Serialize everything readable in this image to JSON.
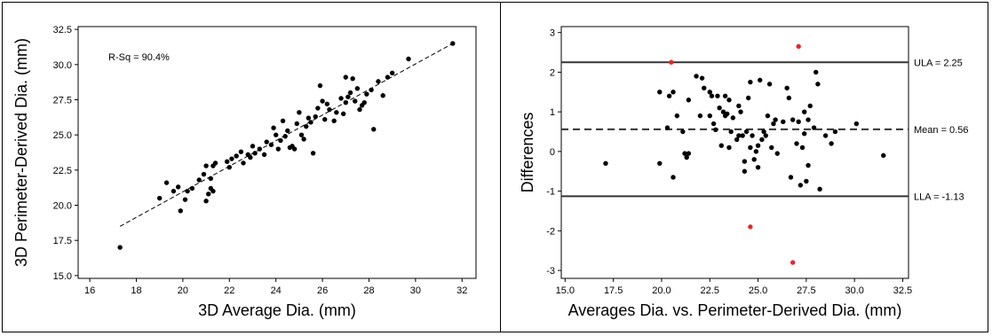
{
  "chart_data": [
    {
      "type": "scatter",
      "xlabel": "3D Average Dia. (mm)",
      "ylabel": "3D Perimeter-Derived Dia. (mm)",
      "xlim": [
        15.5,
        32.6
      ],
      "ylim": [
        14.8,
        32.7
      ],
      "xticks": [
        "16",
        "18",
        "20",
        "22",
        "24",
        "26",
        "28",
        "30",
        "32"
      ],
      "yticks": [
        "15.0",
        "17.5",
        "20.0",
        "22.5",
        "25.0",
        "27.5",
        "30.0",
        "32.5"
      ],
      "annotation": "R-Sq = 90.4%",
      "fit_line": {
        "x": [
          17.3,
          31.6
        ],
        "y": [
          18.5,
          31.5
        ],
        "style": "dashed"
      },
      "points": [
        [
          17.3,
          17.0
        ],
        [
          19.0,
          20.5
        ],
        [
          19.3,
          21.6
        ],
        [
          19.6,
          21.0
        ],
        [
          19.8,
          21.3
        ],
        [
          19.9,
          19.6
        ],
        [
          20.1,
          20.4
        ],
        [
          20.2,
          21.0
        ],
        [
          20.4,
          21.2
        ],
        [
          20.7,
          21.8
        ],
        [
          20.9,
          22.2
        ],
        [
          21.0,
          22.8
        ],
        [
          21.0,
          20.3
        ],
        [
          21.1,
          20.8
        ],
        [
          21.2,
          21.2
        ],
        [
          21.3,
          21.0
        ],
        [
          21.2,
          21.9
        ],
        [
          21.3,
          22.8
        ],
        [
          21.4,
          23.0
        ],
        [
          21.9,
          23.1
        ],
        [
          22.0,
          22.7
        ],
        [
          22.1,
          23.3
        ],
        [
          22.3,
          23.5
        ],
        [
          22.5,
          23.8
        ],
        [
          22.6,
          23.0
        ],
        [
          22.8,
          23.6
        ],
        [
          22.9,
          23.4
        ],
        [
          23.0,
          24.2
        ],
        [
          23.1,
          23.7
        ],
        [
          23.3,
          24.0
        ],
        [
          23.5,
          23.6
        ],
        [
          23.6,
          24.5
        ],
        [
          23.8,
          24.3
        ],
        [
          23.9,
          25.5
        ],
        [
          24.0,
          25.0
        ],
        [
          24.1,
          24.0
        ],
        [
          24.2,
          24.6
        ],
        [
          24.3,
          26.0
        ],
        [
          24.4,
          24.9
        ],
        [
          24.5,
          25.3
        ],
        [
          24.6,
          24.1
        ],
        [
          24.7,
          24.2
        ],
        [
          24.8,
          24.0
        ],
        [
          24.9,
          25.8
        ],
        [
          25.0,
          26.6
        ],
        [
          25.1,
          25.0
        ],
        [
          25.2,
          24.7
        ],
        [
          25.3,
          25.6
        ],
        [
          25.4,
          26.2
        ],
        [
          25.5,
          25.9
        ],
        [
          25.6,
          23.7
        ],
        [
          25.7,
          26.3
        ],
        [
          25.8,
          26.9
        ],
        [
          25.9,
          28.5
        ],
        [
          26.0,
          27.4
        ],
        [
          26.1,
          26.1
        ],
        [
          26.2,
          27.2
        ],
        [
          26.3,
          26.8
        ],
        [
          26.5,
          26.0
        ],
        [
          26.6,
          26.6
        ],
        [
          26.8,
          27.6
        ],
        [
          26.9,
          26.5
        ],
        [
          27.0,
          27.3
        ],
        [
          27.0,
          29.1
        ],
        [
          27.1,
          27.7
        ],
        [
          27.2,
          28.0
        ],
        [
          27.3,
          29.0
        ],
        [
          27.4,
          27.4
        ],
        [
          27.5,
          28.3
        ],
        [
          27.6,
          26.8
        ],
        [
          27.7,
          27.1
        ],
        [
          27.8,
          27.3
        ],
        [
          27.9,
          27.9
        ],
        [
          28.1,
          28.2
        ],
        [
          28.2,
          25.4
        ],
        [
          28.4,
          28.8
        ],
        [
          28.6,
          27.8
        ],
        [
          28.8,
          29.1
        ],
        [
          29.0,
          29.4
        ],
        [
          29.7,
          30.4
        ],
        [
          31.6,
          31.5
        ]
      ]
    },
    {
      "type": "scatter",
      "xlabel": "Averages Dia. vs. Perimeter-Derived Dia. (mm)",
      "ylabel": "Differences",
      "xlim": [
        14.8,
        32.8
      ],
      "ylim": [
        -3.2,
        3.15
      ],
      "xticks": [
        "15.0",
        "17.5",
        "20.0",
        "22.5",
        "25.0",
        "27.5",
        "30.0",
        "32.5"
      ],
      "yticks": [
        "-3",
        "-2",
        "-1",
        "0",
        "1",
        "2",
        "3"
      ],
      "reference_lines": [
        {
          "y": 2.25,
          "label": "ULA = 2.25",
          "style": "solid"
        },
        {
          "y": 0.56,
          "label": "Mean = 0.56",
          "style": "dashed"
        },
        {
          "y": -1.13,
          "label": "LLA = -1.13",
          "style": "solid"
        }
      ],
      "outliers": [
        [
          20.5,
          2.25
        ],
        [
          27.1,
          2.65
        ],
        [
          24.6,
          -1.9
        ],
        [
          26.8,
          -2.8
        ]
      ],
      "points": [
        [
          17.1,
          -0.3
        ],
        [
          19.9,
          -0.3
        ],
        [
          19.9,
          1.5
        ],
        [
          20.3,
          0.6
        ],
        [
          20.4,
          1.4
        ],
        [
          20.6,
          1.5
        ],
        [
          20.6,
          -0.65
        ],
        [
          20.8,
          0.9
        ],
        [
          21.1,
          0.5
        ],
        [
          21.2,
          -0.05
        ],
        [
          21.3,
          -0.15
        ],
        [
          21.4,
          1.3
        ],
        [
          21.4,
          -0.05
        ],
        [
          21.8,
          1.9
        ],
        [
          22.0,
          0.9
        ],
        [
          22.1,
          1.85
        ],
        [
          22.2,
          1.6
        ],
        [
          22.5,
          1.5
        ],
        [
          22.5,
          0.9
        ],
        [
          22.6,
          1.4
        ],
        [
          22.7,
          0.7
        ],
        [
          22.8,
          0.55
        ],
        [
          22.9,
          1.4
        ],
        [
          23.0,
          1.1
        ],
        [
          23.1,
          0.15
        ],
        [
          23.2,
          1.0
        ],
        [
          23.3,
          1.4
        ],
        [
          23.3,
          0.9
        ],
        [
          23.4,
          0.95
        ],
        [
          23.5,
          1.3
        ],
        [
          23.5,
          0.1
        ],
        [
          23.6,
          0.5
        ],
        [
          23.7,
          0.85
        ],
        [
          23.9,
          0.3
        ],
        [
          24.0,
          1.15
        ],
        [
          24.0,
          0.4
        ],
        [
          24.1,
          1.0
        ],
        [
          24.2,
          0.4
        ],
        [
          24.3,
          -0.5
        ],
        [
          24.3,
          -0.25
        ],
        [
          24.4,
          0.5
        ],
        [
          24.5,
          1.35
        ],
        [
          24.6,
          1.75
        ],
        [
          24.6,
          0.1
        ],
        [
          24.7,
          0.4
        ],
        [
          24.8,
          -0.2
        ],
        [
          24.9,
          0.0
        ],
        [
          25.0,
          0.15
        ],
        [
          25.0,
          -0.4
        ],
        [
          25.1,
          1.8
        ],
        [
          25.2,
          0.3
        ],
        [
          25.3,
          0.5
        ],
        [
          25.4,
          0.4
        ],
        [
          25.5,
          0.9
        ],
        [
          25.6,
          1.7
        ],
        [
          25.7,
          0.1
        ],
        [
          25.8,
          0.7
        ],
        [
          25.9,
          0.8
        ],
        [
          26.0,
          -0.05
        ],
        [
          26.3,
          0.75
        ],
        [
          26.5,
          1.6
        ],
        [
          26.6,
          1.35
        ],
        [
          26.7,
          -0.65
        ],
        [
          26.8,
          0.8
        ],
        [
          27.0,
          0.2
        ],
        [
          27.1,
          0.75
        ],
        [
          27.2,
          -0.85
        ],
        [
          27.3,
          0.1
        ],
        [
          27.4,
          1.0
        ],
        [
          27.4,
          0.45
        ],
        [
          27.5,
          -0.75
        ],
        [
          27.6,
          0.8
        ],
        [
          27.6,
          -0.35
        ],
        [
          27.7,
          1.15
        ],
        [
          27.9,
          0.6
        ],
        [
          28.0,
          2.0
        ],
        [
          28.1,
          1.7
        ],
        [
          28.2,
          -0.95
        ],
        [
          28.5,
          0.4
        ],
        [
          28.8,
          0.2
        ],
        [
          29.0,
          0.5
        ],
        [
          30.1,
          0.7
        ],
        [
          31.5,
          -0.1
        ]
      ],
      "colors": {
        "points": "#000000",
        "outliers": "#e8262a"
      }
    }
  ]
}
